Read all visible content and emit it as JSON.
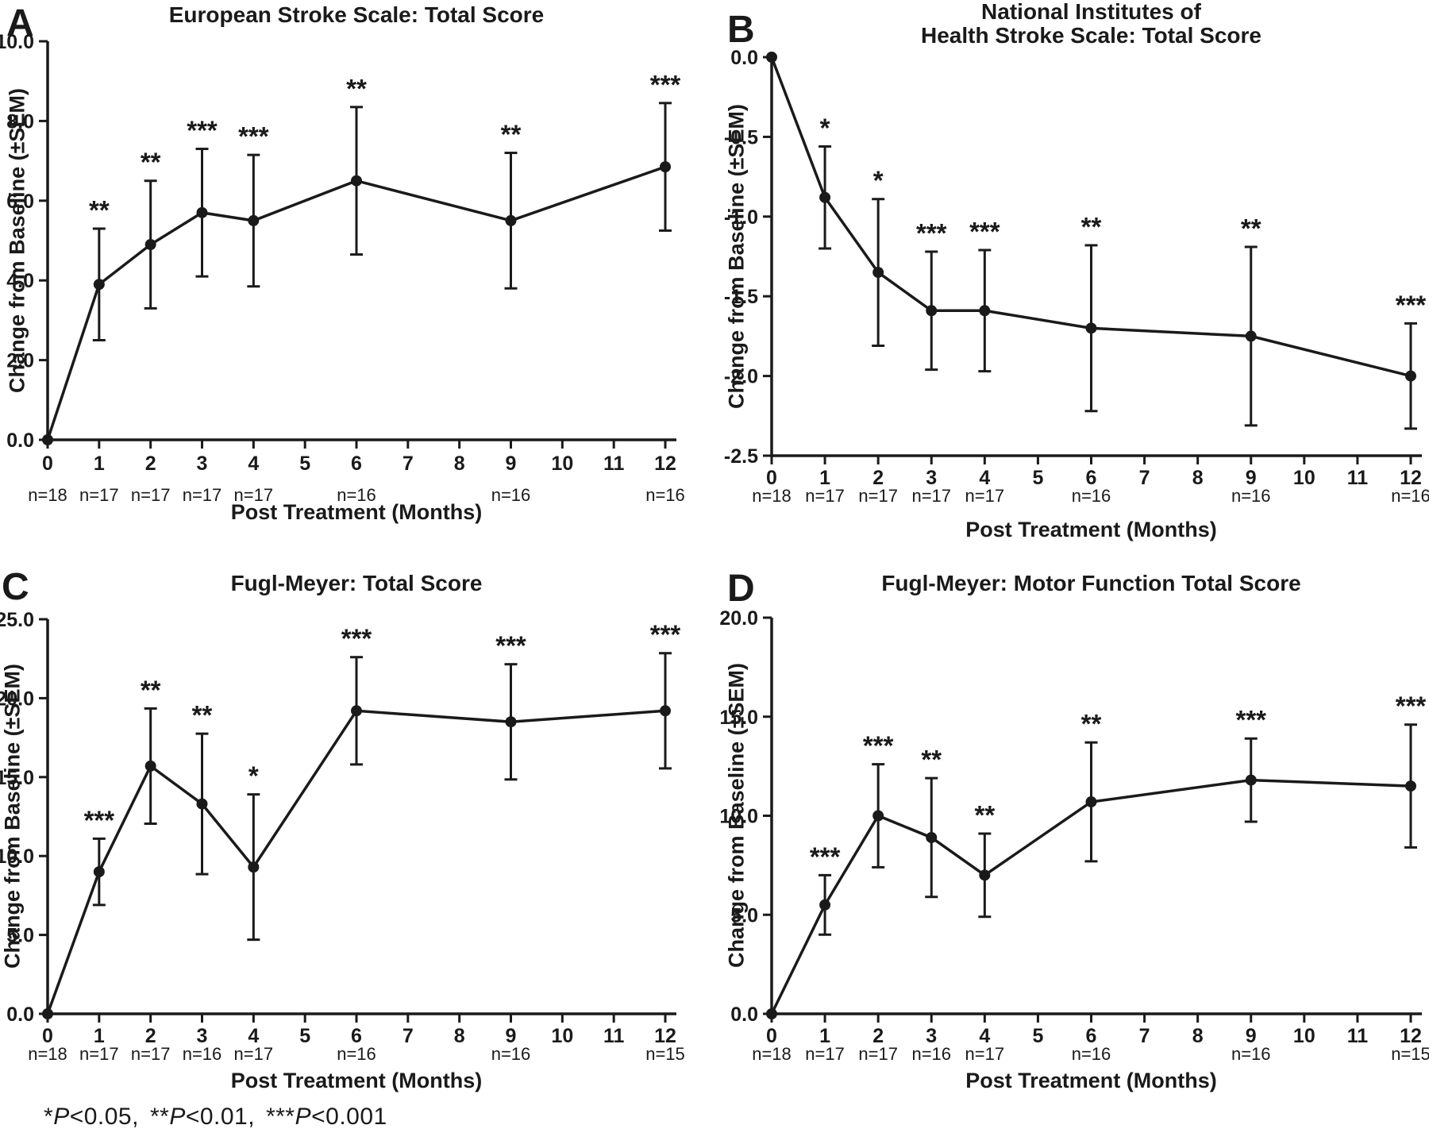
{
  "figure": {
    "panel_labels": [
      "A",
      "B",
      "C",
      "D"
    ],
    "footnote": {
      "segments": [
        {
          "stars": "*",
          "p": "P",
          "rest": "<0.05,"
        },
        {
          "stars": "**",
          "p": "P",
          "rest": "<0.01,"
        },
        {
          "stars": "***",
          "p": "P",
          "rest": "<0.001"
        }
      ]
    }
  },
  "chart_data": [
    {
      "panel": "A",
      "type": "line",
      "title_lines": [
        "European Stroke Scale: Total Score"
      ],
      "xlabel": "Post Treatment (Months)",
      "ylabel": "Change from Baseline (±SEM)",
      "x": [
        0,
        1,
        2,
        3,
        4,
        6,
        9,
        12
      ],
      "y": [
        0,
        3.9,
        4.9,
        5.7,
        5.5,
        6.5,
        5.5,
        6.85
      ],
      "sem": [
        0,
        1.4,
        1.6,
        1.6,
        1.65,
        1.85,
        1.7,
        1.6
      ],
      "significance": [
        "",
        "**",
        "**",
        "***",
        "***",
        "**",
        "**",
        "***"
      ],
      "n_labels": [
        "n=18",
        "n=17",
        "n=17",
        "n=17",
        "n=17",
        "n=16",
        "n=16",
        "n=16"
      ],
      "xlim": [
        0,
        12
      ],
      "ylim": [
        0,
        10
      ],
      "xticks": [
        0,
        1,
        2,
        3,
        4,
        5,
        6,
        7,
        8,
        9,
        10,
        11,
        12
      ],
      "xtick_labels": [
        "0",
        "1",
        "2",
        "3",
        "4",
        "5",
        "6",
        "7",
        "8",
        "9",
        "10",
        "11",
        "12"
      ],
      "yticks": [
        0,
        2,
        4,
        6,
        8,
        10
      ],
      "ytick_labels": [
        "0.0",
        "2.0",
        "4.0",
        "6.0",
        "8.0",
        "10.0"
      ],
      "grid": false,
      "legend": "none",
      "marker": "filled-circle",
      "ink_color": "#1a1a1a"
    },
    {
      "panel": "B",
      "type": "line",
      "title_lines": [
        "National Institutes of",
        "Health Stroke Scale: Total Score"
      ],
      "xlabel": "Post Treatment (Months)",
      "ylabel": "Change from Baseline (±SEM)",
      "x": [
        0,
        1,
        2,
        3,
        4,
        6,
        9,
        12
      ],
      "y": [
        0,
        -0.88,
        -1.35,
        -1.59,
        -1.59,
        -1.7,
        -1.75,
        -2.0
      ],
      "sem": [
        0,
        0.32,
        0.46,
        0.37,
        0.38,
        0.52,
        0.56,
        0.33
      ],
      "significance": [
        "",
        "*",
        "*",
        "***",
        "***",
        "**",
        "**",
        "***"
      ],
      "n_labels": [
        "n=18",
        "n=17",
        "n=17",
        "n=17",
        "n=17",
        "n=16",
        "n=16",
        "n=16"
      ],
      "xlim": [
        0,
        12
      ],
      "ylim": [
        -2.5,
        0
      ],
      "xticks": [
        0,
        1,
        2,
        3,
        4,
        5,
        6,
        7,
        8,
        9,
        10,
        11,
        12
      ],
      "xtick_labels": [
        "0",
        "1",
        "2",
        "3",
        "4",
        "5",
        "6",
        "7",
        "8",
        "9",
        "10",
        "11",
        "12"
      ],
      "yticks": [
        0,
        -0.5,
        -1.0,
        -1.5,
        -2.0,
        -2.5
      ],
      "ytick_labels": [
        "0.0",
        "-0.5",
        "-1.0",
        "-1.5",
        "-2.0",
        "-2.5"
      ],
      "grid": false,
      "legend": "none",
      "marker": "filled-circle",
      "ink_color": "#1a1a1a"
    },
    {
      "panel": "C",
      "type": "line",
      "title_lines": [
        "Fugl-Meyer: Total Score"
      ],
      "xlabel": "Post Treatment (Months)",
      "ylabel": "Change from Baseline (±SEM)",
      "x": [
        0,
        1,
        2,
        3,
        4,
        6,
        9,
        12
      ],
      "y": [
        0,
        9.0,
        15.7,
        13.3,
        9.3,
        19.2,
        18.5,
        19.2
      ],
      "sem": [
        0,
        2.1,
        3.65,
        4.45,
        4.6,
        3.4,
        3.65,
        3.65
      ],
      "significance": [
        "",
        "***",
        "**",
        "**",
        "*",
        "***",
        "***",
        "***"
      ],
      "n_labels": [
        "n=18",
        "n=17",
        "n=17",
        "n=16",
        "n=17",
        "n=16",
        "n=16",
        "n=15"
      ],
      "xlim": [
        0,
        12
      ],
      "ylim": [
        0,
        25
      ],
      "xticks": [
        0,
        1,
        2,
        3,
        4,
        5,
        6,
        7,
        8,
        9,
        10,
        11,
        12
      ],
      "xtick_labels": [
        "0",
        "1",
        "2",
        "3",
        "4",
        "5",
        "6",
        "7",
        "8",
        "9",
        "10",
        "11",
        "12"
      ],
      "yticks": [
        0,
        5,
        10,
        15,
        20,
        25
      ],
      "ytick_labels": [
        "0.0",
        "5.0",
        "10.0",
        "15.0",
        "20.0",
        "25.0"
      ],
      "grid": false,
      "legend": "none",
      "marker": "filled-circle",
      "ink_color": "#1a1a1a"
    },
    {
      "panel": "D",
      "type": "line",
      "title_lines": [
        "Fugl-Meyer: Motor Function Total Score"
      ],
      "xlabel": "Post Treatment (Months)",
      "ylabel": "Change from Baseline (±SEM)",
      "x": [
        0,
        1,
        2,
        3,
        4,
        6,
        9,
        12
      ],
      "y": [
        0,
        5.5,
        10.0,
        8.9,
        7.0,
        10.7,
        11.8,
        11.5
      ],
      "sem": [
        0,
        1.5,
        2.6,
        3.0,
        2.1,
        3.0,
        2.1,
        3.1
      ],
      "significance": [
        "",
        "***",
        "***",
        "**",
        "**",
        "**",
        "***",
        "***"
      ],
      "n_labels": [
        "n=18",
        "n=17",
        "n=17",
        "n=16",
        "n=17",
        "n=16",
        "n=16",
        "n=15"
      ],
      "xlim": [
        0,
        12
      ],
      "ylim": [
        0,
        20
      ],
      "xticks": [
        0,
        1,
        2,
        3,
        4,
        5,
        6,
        7,
        8,
        9,
        10,
        11,
        12
      ],
      "xtick_labels": [
        "0",
        "1",
        "2",
        "3",
        "4",
        "5",
        "6",
        "7",
        "8",
        "9",
        "10",
        "11",
        "12"
      ],
      "yticks": [
        0,
        5,
        10,
        15,
        20
      ],
      "ytick_labels": [
        "0.0",
        "5.0",
        "10.0",
        "15.0",
        "20.0"
      ],
      "grid": false,
      "legend": "none",
      "marker": "filled-circle",
      "ink_color": "#1a1a1a"
    }
  ]
}
